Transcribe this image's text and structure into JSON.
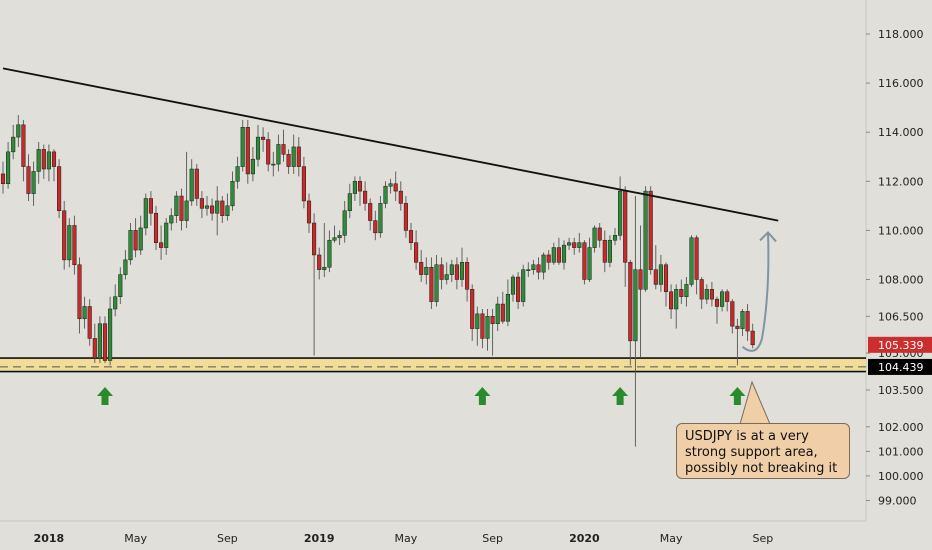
{
  "chart_data": {
    "type": "candlestick",
    "symbol": "USDJPY",
    "timeframe": "weekly",
    "price_axis": {
      "ticks": [
        {
          "value": 118.0,
          "label": "118.000"
        },
        {
          "value": 116.0,
          "label": "116.000"
        },
        {
          "value": 114.0,
          "label": "114.000"
        },
        {
          "value": 112.0,
          "label": "112.000"
        },
        {
          "value": 110.0,
          "label": "110.000"
        },
        {
          "value": 108.0,
          "label": "108.000"
        },
        {
          "value": 106.5,
          "label": "106.500"
        },
        {
          "value": 105.0,
          "label": "105.000"
        },
        {
          "value": 103.5,
          "label": "103.500"
        },
        {
          "value": 102.0,
          "label": "102.000"
        },
        {
          "value": 101.0,
          "label": "101.000"
        },
        {
          "value": 100.0,
          "label": "100.000"
        },
        {
          "value": 99.0,
          "label": "99.000"
        }
      ],
      "current_price": {
        "value": 105.339,
        "label": "105.339",
        "color": "#cc2e2e"
      },
      "support_price": {
        "value": 104.439,
        "label": "104.439",
        "color": "#000000"
      }
    },
    "time_axis": {
      "labels": [
        {
          "week": 9,
          "label": "2018",
          "bold": true
        },
        {
          "week": 26,
          "label": "May",
          "bold": false
        },
        {
          "week": 44,
          "label": "Sep",
          "bold": false
        },
        {
          "week": 62,
          "label": "2019",
          "bold": true
        },
        {
          "week": 79,
          "label": "May",
          "bold": false
        },
        {
          "week": 96,
          "label": "Sep",
          "bold": false
        },
        {
          "week": 114,
          "label": "2020",
          "bold": true
        },
        {
          "week": 131,
          "label": "May",
          "bold": false
        },
        {
          "week": 149,
          "label": "Sep",
          "bold": false
        }
      ]
    },
    "candles": [
      [
        112.3,
        111.9,
        112.8,
        111.5
      ],
      [
        111.9,
        113.2,
        113.6,
        111.7
      ],
      [
        113.2,
        113.8,
        114.3,
        112.9
      ],
      [
        113.8,
        114.3,
        114.7,
        113.4
      ],
      [
        114.3,
        112.6,
        114.5,
        112.0
      ],
      [
        112.6,
        111.5,
        113.1,
        111.2
      ],
      [
        111.5,
        112.4,
        112.8,
        111.0
      ],
      [
        112.4,
        113.3,
        113.6,
        111.9
      ],
      [
        113.3,
        112.5,
        113.5,
        112.1
      ],
      [
        112.5,
        113.2,
        113.5,
        112.0
      ],
      [
        113.2,
        112.6,
        113.3,
        112.0
      ],
      [
        112.6,
        110.8,
        112.9,
        110.5
      ],
      [
        110.8,
        108.8,
        111.2,
        108.4
      ],
      [
        108.8,
        110.2,
        110.5,
        108.5
      ],
      [
        110.2,
        108.6,
        110.6,
        108.2
      ],
      [
        108.6,
        106.4,
        108.9,
        105.8
      ],
      [
        106.4,
        106.9,
        107.3,
        106.0
      ],
      [
        106.9,
        105.6,
        107.2,
        105.3
      ],
      [
        105.6,
        104.8,
        106.2,
        104.6
      ],
      [
        104.8,
        106.2,
        106.5,
        104.6
      ],
      [
        106.2,
        104.7,
        106.5,
        104.6
      ],
      [
        104.7,
        106.8,
        107.3,
        104.5
      ],
      [
        106.8,
        107.3,
        107.8,
        106.5
      ],
      [
        107.3,
        108.2,
        108.5,
        107.0
      ],
      [
        108.2,
        108.8,
        109.2,
        108.0
      ],
      [
        108.8,
        110.0,
        110.3,
        108.6
      ],
      [
        110.0,
        109.2,
        110.5,
        108.9
      ],
      [
        109.2,
        110.1,
        110.6,
        109.0
      ],
      [
        110.1,
        111.3,
        111.5,
        109.8
      ],
      [
        111.3,
        110.7,
        111.6,
        110.2
      ],
      [
        110.7,
        109.5,
        111.0,
        109.2
      ],
      [
        109.5,
        109.3,
        110.2,
        108.8
      ],
      [
        109.3,
        110.3,
        110.5,
        109.0
      ],
      [
        110.3,
        110.6,
        110.9,
        110.0
      ],
      [
        110.6,
        111.4,
        111.6,
        110.3
      ],
      [
        111.4,
        110.4,
        111.7,
        110.0
      ],
      [
        110.4,
        111.2,
        113.2,
        110.1
      ],
      [
        111.2,
        112.5,
        112.9,
        111.0
      ],
      [
        112.5,
        111.3,
        112.7,
        111.0
      ],
      [
        111.3,
        110.9,
        111.6,
        110.5
      ],
      [
        110.9,
        111.0,
        111.4,
        110.6
      ],
      [
        111.0,
        110.7,
        111.3,
        110.4
      ],
      [
        110.7,
        111.2,
        111.8,
        109.8
      ],
      [
        111.2,
        110.6,
        111.4,
        110.3
      ],
      [
        110.6,
        111.0,
        111.5,
        110.4
      ],
      [
        111.0,
        112.0,
        112.4,
        110.8
      ],
      [
        112.0,
        112.6,
        113.0,
        111.7
      ],
      [
        112.6,
        114.2,
        114.5,
        112.4
      ],
      [
        114.2,
        112.3,
        114.5,
        111.9
      ],
      [
        112.3,
        112.9,
        113.4,
        112.0
      ],
      [
        112.9,
        113.8,
        114.3,
        112.6
      ],
      [
        113.8,
        113.7,
        114.2,
        113.2
      ],
      [
        113.7,
        112.7,
        114.0,
        112.4
      ],
      [
        112.7,
        112.7,
        113.2,
        112.2
      ],
      [
        112.7,
        113.5,
        113.9,
        112.4
      ],
      [
        113.5,
        113.1,
        114.1,
        112.8
      ],
      [
        113.1,
        112.6,
        113.3,
        112.3
      ],
      [
        112.6,
        113.4,
        113.9,
        112.3
      ],
      [
        113.4,
        112.6,
        113.8,
        112.2
      ],
      [
        112.6,
        111.2,
        113.0,
        110.9
      ],
      [
        111.2,
        110.3,
        111.5,
        109.9
      ],
      [
        110.3,
        109.0,
        110.7,
        104.9
      ],
      [
        109.0,
        108.4,
        109.3,
        108.0
      ],
      [
        108.4,
        108.5,
        110.3,
        108.1
      ],
      [
        108.5,
        109.6,
        110.0,
        108.3
      ],
      [
        109.6,
        109.7,
        110.2,
        109.5
      ],
      [
        109.7,
        109.8,
        110.0,
        109.4
      ],
      [
        109.8,
        110.8,
        111.2,
        109.5
      ],
      [
        110.8,
        111.5,
        111.9,
        110.5
      ],
      [
        111.5,
        112.0,
        112.2,
        111.2
      ],
      [
        112.0,
        111.6,
        112.2,
        111.0
      ],
      [
        111.6,
        111.1,
        112.0,
        110.8
      ],
      [
        111.1,
        110.4,
        111.3,
        110.0
      ],
      [
        110.4,
        109.9,
        110.8,
        109.6
      ],
      [
        109.9,
        111.1,
        111.4,
        109.7
      ],
      [
        111.1,
        111.8,
        112.0,
        110.9
      ],
      [
        111.8,
        111.9,
        112.1,
        111.5
      ],
      [
        111.9,
        111.6,
        112.4,
        111.2
      ],
      [
        111.6,
        111.1,
        112.0,
        110.8
      ],
      [
        111.1,
        110.0,
        111.4,
        109.7
      ],
      [
        110.0,
        109.5,
        110.3,
        109.2
      ],
      [
        109.5,
        108.7,
        110.0,
        108.4
      ],
      [
        108.7,
        108.2,
        109.2,
        107.9
      ],
      [
        108.2,
        108.5,
        108.9,
        107.8
      ],
      [
        108.5,
        107.1,
        108.9,
        106.8
      ],
      [
        107.1,
        108.6,
        109.0,
        106.9
      ],
      [
        108.6,
        108.0,
        108.9,
        107.6
      ],
      [
        108.0,
        108.2,
        108.7,
        107.8
      ],
      [
        108.2,
        108.6,
        108.8,
        107.9
      ],
      [
        108.6,
        108.0,
        108.9,
        107.6
      ],
      [
        108.0,
        108.7,
        109.3,
        107.7
      ],
      [
        108.7,
        107.6,
        108.9,
        107.1
      ],
      [
        107.6,
        106.0,
        107.8,
        105.5
      ],
      [
        106.0,
        106.6,
        106.9,
        105.3
      ],
      [
        106.6,
        105.6,
        106.8,
        105.2
      ],
      [
        105.6,
        106.5,
        106.8,
        105.1
      ],
      [
        106.5,
        106.2,
        106.8,
        104.9
      ],
      [
        106.2,
        107.0,
        107.3,
        105.9
      ],
      [
        107.0,
        106.3,
        107.5,
        106.2
      ],
      [
        106.3,
        107.4,
        108.0,
        106.1
      ],
      [
        107.4,
        108.1,
        108.2,
        107.1
      ],
      [
        108.1,
        107.1,
        108.3,
        106.8
      ],
      [
        107.1,
        108.4,
        108.6,
        106.9
      ],
      [
        108.4,
        108.4,
        108.7,
        108.1
      ],
      [
        108.4,
        108.6,
        108.8,
        108.2
      ],
      [
        108.6,
        108.3,
        108.9,
        108.0
      ],
      [
        108.3,
        109.0,
        109.1,
        108.0
      ],
      [
        109.0,
        108.7,
        109.2,
        108.4
      ],
      [
        108.7,
        109.3,
        109.5,
        108.6
      ],
      [
        109.3,
        108.7,
        109.7,
        108.6
      ],
      [
        108.7,
        109.4,
        109.6,
        108.4
      ],
      [
        109.4,
        109.5,
        109.7,
        109.2
      ],
      [
        109.5,
        109.3,
        109.7,
        109.0
      ],
      [
        109.3,
        109.5,
        109.9,
        109.1
      ],
      [
        109.5,
        108.0,
        109.6,
        107.8
      ],
      [
        108.0,
        109.3,
        109.7,
        107.9
      ],
      [
        109.3,
        110.1,
        110.2,
        109.1
      ],
      [
        110.1,
        109.6,
        110.3,
        109.3
      ],
      [
        109.6,
        108.7,
        110.0,
        108.3
      ],
      [
        108.7,
        109.6,
        109.8,
        108.5
      ],
      [
        109.6,
        109.8,
        110.1,
        109.4
      ],
      [
        109.8,
        111.6,
        112.2,
        109.6
      ],
      [
        111.6,
        108.7,
        111.8,
        107.7
      ],
      [
        108.7,
        105.5,
        108.8,
        104.5
      ],
      [
        105.5,
        108.4,
        111.4,
        101.2
      ],
      [
        108.4,
        107.6,
        110.2,
        104.8
      ],
      [
        107.6,
        111.6,
        111.8,
        107.5
      ],
      [
        111.6,
        108.4,
        111.8,
        108.2
      ],
      [
        108.4,
        107.8,
        109.4,
        107.6
      ],
      [
        107.8,
        108.6,
        109.0,
        107.5
      ],
      [
        108.6,
        107.5,
        108.7,
        106.9
      ],
      [
        107.5,
        106.8,
        107.8,
        106.4
      ],
      [
        106.8,
        107.6,
        107.8,
        106.0
      ],
      [
        107.6,
        107.3,
        108.0,
        107.0
      ],
      [
        107.3,
        107.8,
        108.1,
        106.9
      ],
      [
        107.8,
        109.7,
        109.8,
        107.7
      ],
      [
        109.7,
        108.0,
        109.8,
        107.4
      ],
      [
        108.0,
        107.2,
        108.1,
        106.8
      ],
      [
        107.2,
        107.6,
        107.8,
        107.0
      ],
      [
        107.6,
        107.2,
        107.9,
        106.9
      ],
      [
        107.2,
        106.9,
        107.3,
        106.2
      ],
      [
        106.9,
        107.5,
        107.6,
        106.7
      ],
      [
        107.5,
        107.1,
        107.6,
        106.7
      ],
      [
        107.1,
        106.1,
        107.2,
        105.8
      ],
      [
        106.1,
        106.0,
        106.4,
        104.5
      ],
      [
        106.0,
        106.7,
        106.8,
        105.7
      ],
      [
        106.7,
        105.9,
        107.0,
        105.5
      ],
      [
        105.9,
        105.34,
        106.2,
        105.2
      ]
    ],
    "trendline": {
      "from": {
        "week": 0,
        "price": 116.6
      },
      "to": {
        "week": 152,
        "price": 110.4
      }
    },
    "support_zone": {
      "top": 104.8,
      "bottom": 104.25,
      "line": 104.439
    },
    "arrows_up_at_weeks": [
      20,
      94,
      121,
      144
    ],
    "projection": {
      "from_week": 145,
      "to_week": 150
    },
    "annotation": {
      "line1": "USDJPY is at a very",
      "line2": "strong support area,",
      "line3": "possibly not breaking it"
    },
    "colors": {
      "up": "#2e8b3a",
      "down": "#c62a2a",
      "wick": "#555555",
      "arrow": "#2c8a2e",
      "projection": "#7f95a3",
      "callout_bg": "#f0cfa8"
    }
  }
}
